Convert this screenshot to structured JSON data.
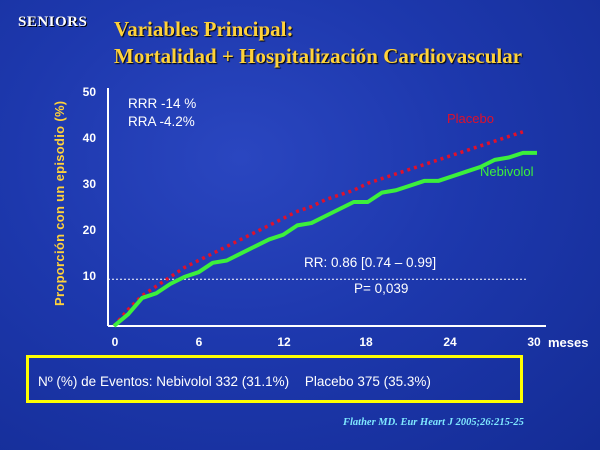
{
  "logo": "SENIORS",
  "title_line1": "Variables Principal:",
  "title_line2": "Mortalidad + Hospitalización Cardiovascular",
  "annotations": {
    "rrr": "RRR -14 %",
    "rra": "RRA -4.2%",
    "rr": "RR: 0.86 [0.74 – 0.99]",
    "p": "P= 0,039"
  },
  "events": {
    "prefix": "Nº (%) de Eventos:",
    "nebivolol": "Nebivolol 332 (31.1%)",
    "placebo": "Placebo 375 (35.3%)"
  },
  "citation": "Flather MD. Eur Heart J 2005;26:215-25",
  "colors": {
    "placebo": "#e0102a",
    "nebivolol": "#3cf03c",
    "title": "#ffd23a",
    "box": "#ffff00"
  },
  "chart_data": {
    "type": "line",
    "title": "",
    "xlabel": "meses",
    "ylabel": "Proporción con un episodio (%)",
    "xlim": [
      0,
      30
    ],
    "ylim": [
      0,
      50
    ],
    "xticks": [
      "0",
      "6",
      "12",
      "18",
      "24",
      "30"
    ],
    "yticks": [
      "10",
      "20",
      "30",
      "40",
      "50"
    ],
    "reference_line_y": 10,
    "series": [
      {
        "name": "Placebo",
        "style": "dotted",
        "x": [
          0,
          1,
          2,
          3,
          4,
          5,
          6,
          7,
          8,
          9,
          10,
          11,
          12,
          13,
          14,
          15,
          16,
          17,
          18,
          19,
          20,
          21,
          22,
          23,
          24,
          25,
          26,
          27,
          28,
          29
        ],
        "y": [
          0,
          3.5,
          6.5,
          8.5,
          10.5,
          12.5,
          14,
          15.5,
          17,
          18.5,
          20,
          21.5,
          23,
          24.5,
          25.5,
          27,
          28,
          29,
          30.5,
          31.5,
          32.5,
          33.5,
          34.5,
          35.5,
          36.5,
          37.5,
          38.5,
          39.5,
          40.5,
          41.5
        ]
      },
      {
        "name": "Nebivolol",
        "style": "solid",
        "x": [
          0,
          1,
          2,
          3,
          4,
          5,
          6,
          7,
          8,
          9,
          10,
          11,
          12,
          13,
          14,
          15,
          16,
          17,
          18,
          19,
          20,
          21,
          22,
          23,
          24,
          25,
          26,
          27,
          28,
          29,
          30
        ],
        "y": [
          0,
          2.5,
          6,
          7,
          9,
          10.5,
          11.5,
          13.5,
          14,
          15.5,
          17,
          18.5,
          19.5,
          21.5,
          22,
          23.5,
          25,
          26.5,
          26.5,
          28.5,
          29,
          30,
          31,
          31,
          32,
          33,
          34,
          35.5,
          36,
          37,
          37
        ]
      }
    ]
  }
}
